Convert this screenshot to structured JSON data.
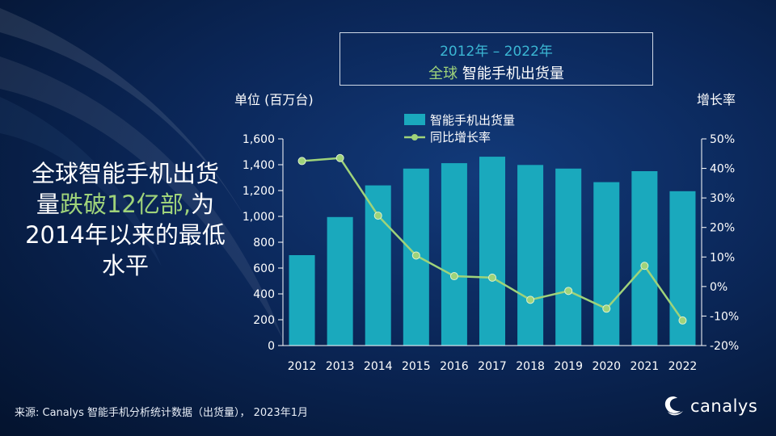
{
  "title": {
    "line1": "2012年 – 2022年",
    "line2_accent": "全球",
    "line2_rest": " 智能手机出货量"
  },
  "left_unit": "单位 (百万台)",
  "right_unit": "增长率",
  "headline": {
    "part1": "全球智能手机出货量",
    "highlight": "跌破12亿部,",
    "part2": "为2014年以来的最低水平"
  },
  "source": "来源: Canalys 智能手机分析统计数据（出货量）， 2023年1月",
  "logo_text": "canalys",
  "colors": {
    "bar": "#1aa9bd",
    "line": "#9fd37a",
    "title_year": "#3bb7d4",
    "accent_green": "#9fd37a"
  },
  "chart_data": {
    "type": "bar",
    "categories": [
      "2012",
      "2013",
      "2014",
      "2015",
      "2016",
      "2017",
      "2018",
      "2019",
      "2020",
      "2021",
      "2022"
    ],
    "series": [
      {
        "name": "智能手机出货量",
        "type": "bar",
        "axis": "left",
        "values": [
          700,
          995,
          1240,
          1370,
          1412,
          1462,
          1398,
          1370,
          1265,
          1350,
          1195
        ]
      },
      {
        "name": "同比增长率",
        "type": "line",
        "axis": "right",
        "values": [
          42.5,
          43.5,
          24,
          10.5,
          3.5,
          3,
          -4.5,
          -1.5,
          -7.5,
          7,
          -11.5
        ]
      }
    ],
    "y_left": {
      "min": 0,
      "max": 1600,
      "ticks": [
        "0",
        "200",
        "400",
        "600",
        "800",
        "1,000",
        "1,200",
        "1,400",
        "1,600"
      ]
    },
    "y_right": {
      "min": -20,
      "max": 50,
      "ticks": [
        "-20%",
        "-10%",
        "0%",
        "10%",
        "20%",
        "30%",
        "40%",
        "50%"
      ]
    },
    "legend": [
      "智能手机出货量",
      "同比增长率"
    ],
    "legend_position": "top",
    "grid": false
  }
}
